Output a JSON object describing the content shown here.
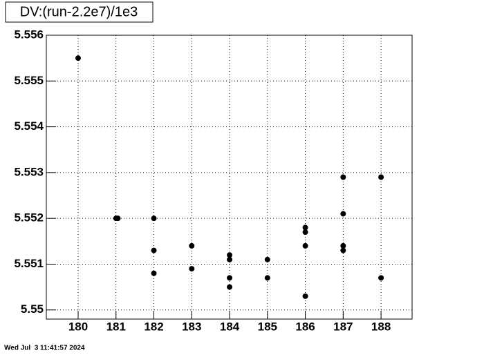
{
  "chart_data": {
    "type": "scatter",
    "title": "DV:(run-2.2e7)/1e3",
    "x": [
      180,
      181,
      181.05,
      182,
      182,
      182,
      183,
      183,
      184,
      184,
      184,
      184,
      185,
      185,
      186,
      186,
      186,
      186,
      187,
      187,
      187,
      187,
      188,
      188
    ],
    "values": [
      5.5555,
      5.552,
      5.552,
      5.552,
      5.5513,
      5.5508,
      5.5514,
      5.5509,
      5.5512,
      5.5511,
      5.5507,
      5.5505,
      5.5511,
      5.5507,
      5.5518,
      5.5517,
      5.5514,
      5.5503,
      5.5529,
      5.5521,
      5.5514,
      5.5513,
      5.5529,
      5.5507
    ],
    "color": "#000000",
    "xlim": [
      179.16,
      188.82
    ],
    "xticks": [
      180,
      181,
      182,
      183,
      184,
      185,
      186,
      187,
      188
    ],
    "ylim": [
      5.5498,
      5.556
    ],
    "yticks": [
      5.55,
      5.551,
      5.552,
      5.553,
      5.554,
      5.555,
      5.556
    ],
    "grid": true
  },
  "timestamp": "Wed Jul  3 11:41:57 2024"
}
